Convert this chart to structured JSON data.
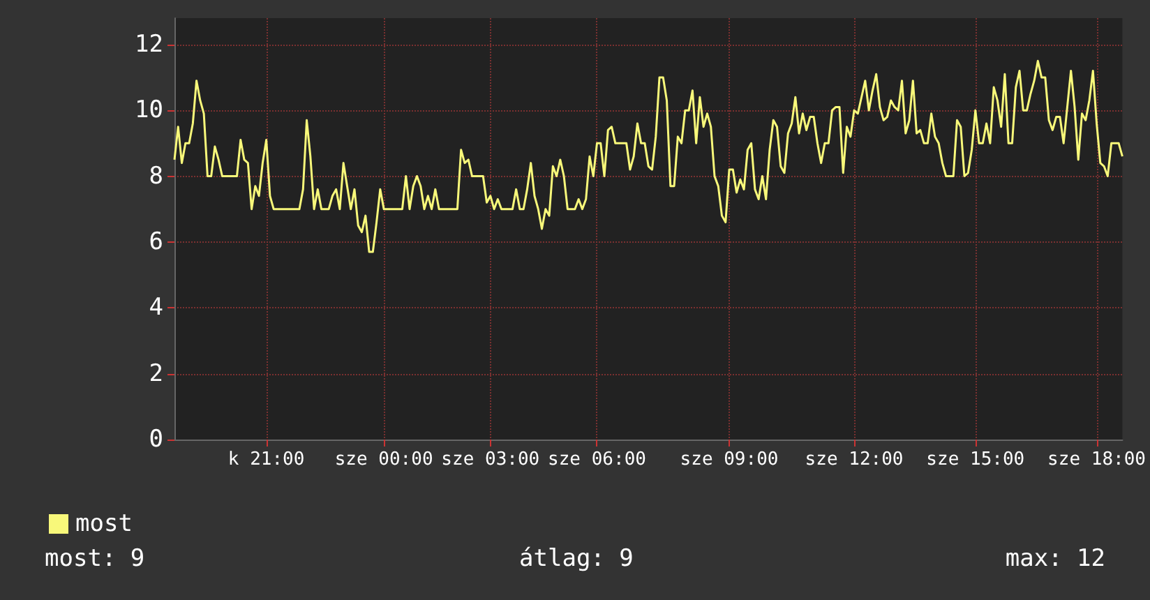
{
  "chart_data": {
    "type": "line",
    "legend": "bottom left",
    "grid": true,
    "marker": "none",
    "line_style": "solid",
    "annotations": [
      "most: 9",
      "átlag: 9",
      "max: 12"
    ],
    "categories": [
      null,
      null,
      null,
      null,
      null,
      null,
      null,
      null,
      null,
      null,
      null,
      null,
      null,
      null,
      null,
      null,
      null,
      null,
      null,
      null,
      null,
      null,
      null,
      null,
      null,
      "k 21:00",
      null,
      null,
      null,
      null,
      null,
      null,
      null,
      null,
      null,
      null,
      null,
      null,
      null,
      null,
      null,
      null,
      null,
      null,
      null,
      null,
      null,
      null,
      null,
      null,
      null,
      null,
      null,
      null,
      null,
      null,
      null,
      "sze 00:00",
      null,
      null,
      null,
      null,
      null,
      null,
      null,
      null,
      null,
      null,
      null,
      null,
      null,
      null,
      null,
      null,
      null,
      null,
      null,
      null,
      null,
      null,
      null,
      null,
      null,
      null,
      null,
      null,
      "sze 03:00",
      null,
      null,
      null,
      null,
      null,
      null,
      null,
      null,
      null,
      null,
      null,
      null,
      null,
      null,
      null,
      null,
      null,
      null,
      null,
      null,
      null,
      null,
      null,
      null,
      null,
      null,
      null,
      null,
      "sze 06:00",
      null,
      null,
      null,
      null,
      null,
      null,
      null,
      null,
      null,
      null,
      null,
      null,
      null,
      null,
      null,
      null,
      null,
      null,
      null,
      null,
      null,
      null,
      null,
      null,
      null,
      null,
      null,
      null,
      null,
      null,
      null,
      null,
      null,
      null,
      null,
      "sze 09:00",
      null,
      null,
      null,
      null,
      null,
      null,
      null,
      null,
      null,
      null,
      null,
      null,
      null,
      null,
      null,
      null,
      null,
      null,
      null,
      null,
      null,
      null,
      null,
      null,
      null,
      null,
      null,
      null,
      null,
      null,
      null,
      null,
      null,
      "sze 12:00",
      null,
      null,
      null,
      null,
      null,
      null,
      null,
      null,
      null,
      null,
      null,
      null,
      null,
      null,
      null,
      null,
      null,
      null,
      null,
      null,
      null,
      null,
      null,
      null,
      null,
      null,
      null,
      null,
      null,
      null,
      null,
      null,
      "sze 15:00",
      null,
      null,
      null,
      null,
      null,
      null,
      null,
      null,
      null,
      null,
      null,
      null,
      null,
      null,
      null,
      null,
      null,
      null,
      null,
      null,
      null,
      null,
      null,
      null,
      null,
      null,
      null,
      null,
      null,
      null,
      null,
      null,
      "sze 18:00",
      null,
      null,
      null,
      null,
      null,
      null,
      null
    ],
    "ylim": [
      0,
      12.8
    ],
    "yticks": [
      0,
      2,
      4,
      6,
      8,
      10,
      12
    ],
    "series": [
      {
        "name": "most",
        "color": "#f8f87a",
        "values": [
          8.5,
          9.5,
          8.4,
          9.0,
          9.0,
          9.6,
          10.9,
          10.3,
          9.9,
          8.0,
          8.0,
          8.9,
          8.5,
          8.0,
          8.0,
          8.0,
          8.0,
          8.0,
          9.1,
          8.5,
          8.4,
          7.0,
          7.7,
          7.4,
          8.4,
          9.1,
          7.4,
          7.0,
          7.0,
          7.0,
          7.0,
          7.0,
          7.0,
          7.0,
          7.0,
          7.6,
          9.7,
          8.6,
          7.0,
          7.6,
          7.0,
          7.0,
          7.0,
          7.4,
          7.6,
          7.0,
          8.4,
          7.7,
          7.0,
          7.6,
          6.5,
          6.3,
          6.8,
          5.7,
          5.7,
          6.6,
          7.6,
          7.0,
          7.0,
          7.0,
          7.0,
          7.0,
          7.0,
          8.0,
          7.0,
          7.7,
          8.0,
          7.7,
          7.0,
          7.4,
          7.0,
          7.6,
          7.0,
          7.0,
          7.0,
          7.0,
          7.0,
          7.0,
          8.8,
          8.4,
          8.5,
          8.0,
          8.0,
          8.0,
          8.0,
          7.2,
          7.4,
          7.0,
          7.3,
          7.0,
          7.0,
          7.0,
          7.0,
          7.6,
          7.0,
          7.0,
          7.6,
          8.4,
          7.4,
          7.0,
          6.4,
          7.0,
          6.8,
          8.3,
          8.0,
          8.5,
          8.0,
          7.0,
          7.0,
          7.0,
          7.3,
          7.0,
          7.3,
          8.6,
          8.0,
          9.0,
          9.0,
          8.0,
          9.4,
          9.5,
          9.0,
          9.0,
          9.0,
          9.0,
          8.2,
          8.6,
          9.6,
          9.0,
          9.0,
          8.3,
          8.2,
          9.2,
          11.0,
          11.0,
          10.3,
          7.7,
          7.7,
          9.2,
          9.0,
          10.0,
          10.0,
          10.6,
          9.0,
          10.4,
          9.5,
          9.9,
          9.5,
          8.0,
          7.7,
          6.8,
          6.6,
          8.2,
          8.2,
          7.5,
          7.9,
          7.6,
          8.8,
          9.0,
          7.6,
          7.3,
          8.0,
          7.3,
          8.8,
          9.7,
          9.5,
          8.3,
          8.1,
          9.3,
          9.6,
          10.4,
          9.3,
          9.9,
          9.4,
          9.8,
          9.8,
          9.0,
          8.4,
          9.0,
          9.0,
          10.0,
          10.1,
          10.1,
          8.1,
          9.5,
          9.2,
          10.0,
          9.9,
          10.4,
          10.9,
          10.0,
          10.6,
          11.1,
          10.1,
          9.7,
          9.8,
          10.3,
          10.1,
          10.0,
          10.9,
          9.3,
          9.7,
          10.9,
          9.3,
          9.4,
          9.0,
          9.0,
          9.9,
          9.2,
          9.0,
          8.4,
          8.0,
          8.0,
          8.0,
          9.7,
          9.5,
          8.0,
          8.1,
          8.8,
          10.0,
          9.0,
          9.0,
          9.6,
          9.0,
          10.7,
          10.3,
          9.5,
          11.1,
          9.0,
          9.0,
          10.7,
          11.2,
          10.0,
          10.0,
          10.5,
          10.9,
          11.5,
          11.0,
          11.0,
          9.7,
          9.4,
          9.8,
          9.8,
          9.0,
          10.1,
          11.2,
          10.1,
          8.5,
          9.9,
          9.7,
          10.3,
          11.2,
          9.6,
          8.4,
          8.3,
          8.0,
          9.0,
          9.0,
          9.0,
          8.6
        ]
      }
    ]
  }
}
